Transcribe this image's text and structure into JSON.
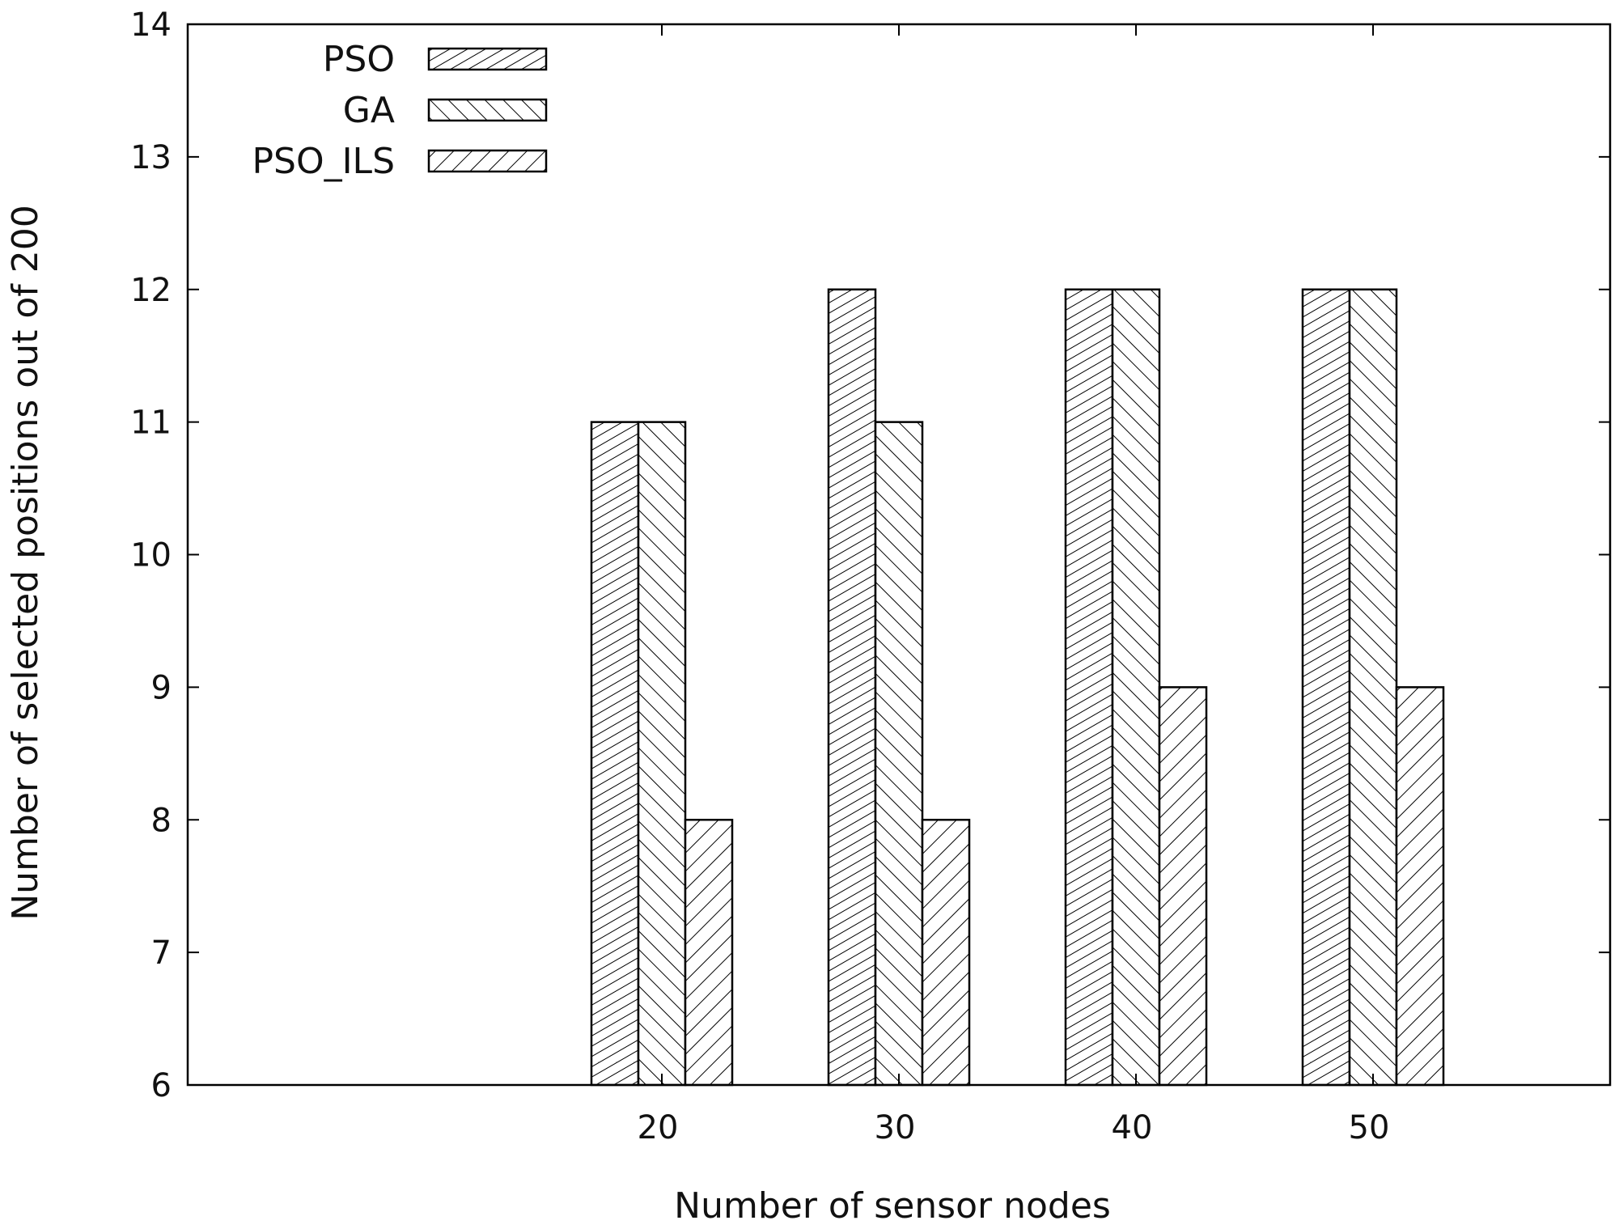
{
  "chart_data": {
    "type": "bar",
    "categories": [
      "20",
      "30",
      "40",
      "50"
    ],
    "x_axis_range": [
      0,
      6
    ],
    "category_positions": [
      2,
      3,
      4,
      5
    ],
    "series": [
      {
        "name": "PSO",
        "values": [
          11,
          12,
          12,
          12
        ],
        "pattern": "dense-diagonal-forward"
      },
      {
        "name": "GA",
        "values": [
          11,
          11,
          12,
          12
        ],
        "pattern": "diagonal-backward"
      },
      {
        "name": "PSO_ILS",
        "values": [
          8,
          8,
          9,
          9
        ],
        "pattern": "diagonal-forward"
      }
    ],
    "xlabel": "Number of sensor nodes",
    "ylabel": "Number of selected positions out of 200",
    "ylim": [
      6,
      14
    ],
    "yticks": [
      6,
      7,
      8,
      9,
      10,
      11,
      12,
      13,
      14
    ],
    "grid": false,
    "legend_position": "top-left",
    "colors": {
      "bar_fill": "#ffffff",
      "stroke": "#000000"
    }
  }
}
